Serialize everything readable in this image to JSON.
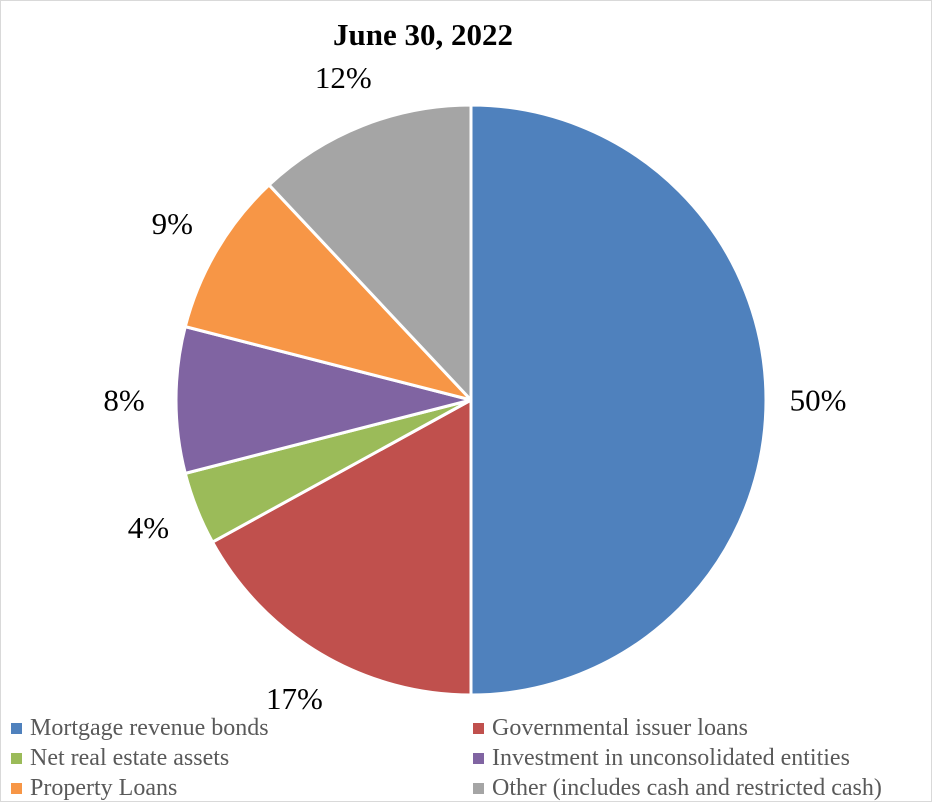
{
  "chart_data": {
    "type": "pie",
    "title": "June 30, 2022",
    "slices": [
      {
        "name": "Mortgage revenue bonds",
        "value": 50,
        "label": "50%",
        "color": "#4F81BD"
      },
      {
        "name": "Governmental issuer loans",
        "value": 17,
        "label": "17%",
        "color": "#C0504D"
      },
      {
        "name": "Net real estate assets",
        "value": 4,
        "label": "4%",
        "color": "#9BBB59"
      },
      {
        "name": "Investment in unconsolidated entities",
        "value": 8,
        "label": "8%",
        "color": "#8064A2"
      },
      {
        "name": "Property Loans",
        "value": 9,
        "label": "9%",
        "color": "#F79646"
      },
      {
        "name": "Other (includes cash and restricted cash)",
        "value": 12,
        "label": "12%",
        "color": "#A5A5A5"
      }
    ],
    "start_angle": "12 o'clock",
    "direction": "clockwise",
    "legend_position": "bottom"
  }
}
